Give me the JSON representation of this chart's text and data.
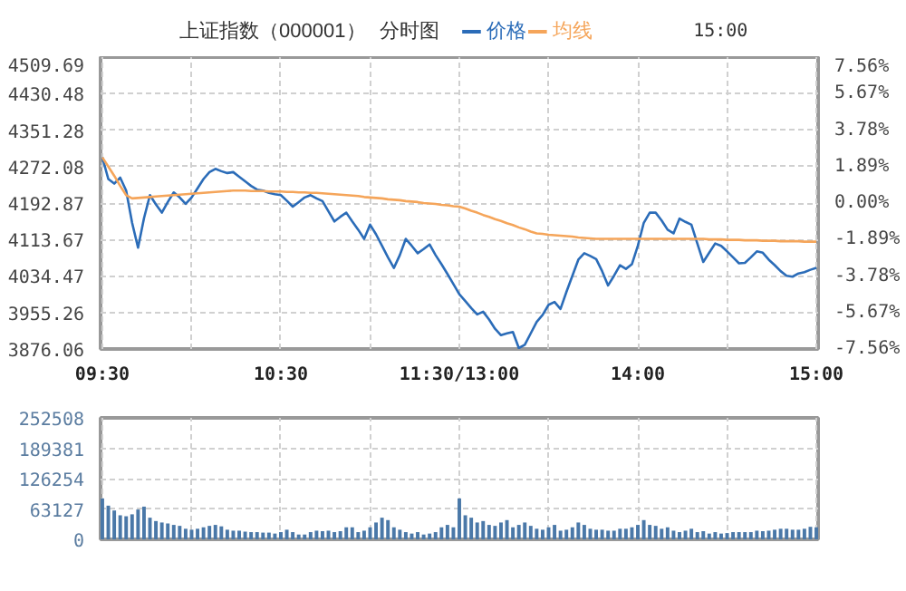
{
  "chart_data": [
    {
      "type": "line",
      "title": "上证指数（000001）",
      "subtitle": "分时图",
      "annotations": [
        "15:00"
      ],
      "legend": "top",
      "grid": true,
      "categories": [
        "09:30",
        null,
        null,
        null,
        null,
        null,
        null,
        null,
        null,
        null,
        null,
        null,
        null,
        null,
        null,
        null,
        null,
        null,
        null,
        null,
        null,
        null,
        null,
        null,
        null,
        null,
        null,
        null,
        null,
        null,
        "10:30",
        null,
        null,
        null,
        null,
        null,
        null,
        null,
        null,
        null,
        null,
        null,
        null,
        null,
        null,
        null,
        null,
        null,
        null,
        null,
        null,
        null,
        null,
        null,
        null,
        null,
        null,
        null,
        null,
        null,
        "11:30/13:00",
        null,
        null,
        null,
        null,
        null,
        null,
        null,
        null,
        null,
        null,
        null,
        null,
        null,
        null,
        null,
        null,
        null,
        null,
        null,
        null,
        null,
        null,
        null,
        null,
        null,
        null,
        null,
        null,
        null,
        "14:00",
        null,
        null,
        null,
        null,
        null,
        null,
        null,
        null,
        null,
        null,
        null,
        null,
        null,
        null,
        null,
        null,
        null,
        null,
        null,
        null,
        null,
        null,
        null,
        null,
        null,
        null,
        null,
        null,
        null,
        "15:00"
      ],
      "ylim": [
        3876.06,
        4509.69
      ],
      "yticks": [
        3876.06,
        3955.26,
        4034.47,
        4113.67,
        4192.87,
        4272.08,
        4351.28,
        4430.48,
        4509.69
      ],
      "y2lim": [
        -7.56,
        7.56
      ],
      "y2ticks": [
        {
          "value": -7.56,
          "label": "-7.56%"
        },
        {
          "value": -5.67,
          "label": "-5.67%"
        },
        {
          "value": -3.78,
          "label": "-3.78%"
        },
        {
          "value": -1.89,
          "label": "-1.89%"
        },
        {
          "value": 0,
          "label": "0.00%"
        },
        {
          "value": 1.89,
          "label": "1.89%"
        },
        {
          "value": 3.78,
          "label": "3.78%"
        },
        {
          "value": 5.67,
          "label": "5.67%"
        },
        {
          "value": 7.56,
          "label": "7.56%"
        }
      ],
      "series": [
        {
          "name": "价格",
          "color": "#2b6cb8",
          "values": [
            4292,
            4245,
            4235,
            4248,
            4220,
            4150,
            4096,
            4160,
            4210,
            4190,
            4172,
            4195,
            4216,
            4205,
            4191,
            4205,
            4225,
            4245,
            4260,
            4267,
            4262,
            4258,
            4260,
            4250,
            4240,
            4230,
            4222,
            4220,
            4215,
            4212,
            4210,
            4198,
            4185,
            4195,
            4205,
            4210,
            4203,
            4197,
            4175,
            4153,
            4163,
            4172,
            4153,
            4135,
            4115,
            4146,
            4125,
            4100,
            4075,
            4052,
            4080,
            4115,
            4100,
            4084,
            4093,
            4103,
            4080,
            4060,
            4039,
            4017,
            3995,
            3980,
            3965,
            3951,
            3957,
            3940,
            3920,
            3906,
            3910,
            3913,
            3878,
            3885,
            3910,
            3935,
            3950,
            3972,
            3978,
            3963,
            4000,
            4035,
            4070,
            4084,
            4078,
            4071,
            4045,
            4014,
            4035,
            4058,
            4050,
            4060,
            4100,
            4150,
            4172,
            4172,
            4155,
            4135,
            4127,
            4159,
            4152,
            4146,
            4105,
            4065,
            4085,
            4105,
            4100,
            4088,
            4075,
            4062,
            4063,
            4075,
            4088,
            4085,
            4070,
            4058,
            4045,
            4035,
            4033,
            4040,
            4043,
            4048,
            4052
          ]
        },
        {
          "name": "均线",
          "color": "#f5a55a",
          "values": [
            4292,
            4272,
            4252,
            4230,
            4210,
            4203,
            4204,
            4205,
            4206,
            4207,
            4208,
            4209,
            4210,
            4211,
            4212,
            4213,
            4214,
            4215,
            4216,
            4217,
            4218,
            4219,
            4220,
            4220,
            4220,
            4219,
            4219,
            4219,
            4218,
            4218,
            4218,
            4217,
            4217,
            4216,
            4216,
            4215,
            4215,
            4214,
            4213,
            4212,
            4211,
            4210,
            4209,
            4208,
            4206,
            4205,
            4204,
            4203,
            4201,
            4200,
            4199,
            4197,
            4196,
            4195,
            4193,
            4192,
            4191,
            4189,
            4188,
            4186,
            4185,
            4181,
            4176,
            4172,
            4167,
            4163,
            4158,
            4154,
            4149,
            4145,
            4140,
            4136,
            4131,
            4127,
            4126,
            4124,
            4123,
            4122,
            4121,
            4120,
            4118,
            4117,
            4116,
            4115,
            4115,
            4115,
            4115,
            4115,
            4115,
            4115,
            4115,
            4115,
            4115,
            4115,
            4115,
            4115,
            4115,
            4115,
            4115,
            4115,
            4115,
            4115,
            4114,
            4114,
            4114,
            4113,
            4113,
            4113,
            4112,
            4112,
            4112,
            4111,
            4111,
            4111,
            4110,
            4110,
            4110,
            4110,
            4109,
            4109,
            4109
          ]
        }
      ]
    },
    {
      "type": "bar",
      "tick_labels": "y",
      "grid": true,
      "ylim": [
        0,
        252508
      ],
      "yticks": [
        0,
        63127,
        126254,
        189381,
        252508
      ],
      "categories": [
        null,
        null,
        null,
        null,
        null,
        null,
        null,
        null,
        null,
        null,
        null,
        null,
        null,
        null,
        null,
        null,
        null,
        null,
        null,
        null,
        null,
        null,
        null,
        null,
        null,
        null,
        null,
        null,
        null,
        null,
        null,
        null,
        null,
        null,
        null,
        null,
        null,
        null,
        null,
        null,
        null,
        null,
        null,
        null,
        null,
        null,
        null,
        null,
        null,
        null,
        null,
        null,
        null,
        null,
        null,
        null,
        null,
        null,
        null,
        null,
        null,
        null,
        null,
        null,
        null,
        null,
        null,
        null,
        null,
        null,
        null,
        null,
        null,
        null,
        null,
        null,
        null,
        null,
        null,
        null,
        null,
        null,
        null,
        null,
        null,
        null,
        null,
        null,
        null,
        null,
        null,
        null,
        null,
        null,
        null,
        null,
        null,
        null,
        null,
        null,
        null,
        null,
        null,
        null,
        null,
        null,
        null,
        null,
        null,
        null,
        null,
        null,
        null,
        null,
        null,
        null,
        null,
        null,
        null,
        null,
        null
      ],
      "series": [
        {
          "color": "#4a78a8",
          "values": [
            85000,
            70000,
            60000,
            50000,
            48000,
            52000,
            62000,
            68000,
            45000,
            38000,
            35000,
            33000,
            30000,
            28000,
            22000,
            20000,
            22000,
            25000,
            28000,
            30000,
            27000,
            20000,
            18000,
            18000,
            16000,
            15000,
            15000,
            14000,
            14000,
            12000,
            15000,
            20000,
            15000,
            10000,
            10000,
            15000,
            18000,
            17000,
            18000,
            15000,
            17000,
            25000,
            25000,
            15000,
            18000,
            25000,
            35000,
            45000,
            40000,
            25000,
            20000,
            15000,
            12000,
            15000,
            10000,
            12000,
            15000,
            25000,
            30000,
            25000,
            85000,
            50000,
            45000,
            35000,
            38000,
            30000,
            28000,
            35000,
            40000,
            25000,
            30000,
            35000,
            28000,
            22000,
            20000,
            25000,
            30000,
            18000,
            20000,
            25000,
            35000,
            30000,
            22000,
            20000,
            20000,
            18000,
            18000,
            22000,
            22000,
            25000,
            30000,
            40000,
            30000,
            28000,
            22000,
            25000,
            18000,
            15000,
            18000,
            22000,
            15000,
            17000,
            12000,
            15000,
            12000,
            13000,
            15000,
            15000,
            15000,
            15000,
            18000,
            17000,
            18000,
            20000,
            22000,
            22000,
            20000,
            20000,
            22000,
            26000,
            25000
          ]
        }
      ]
    }
  ]
}
